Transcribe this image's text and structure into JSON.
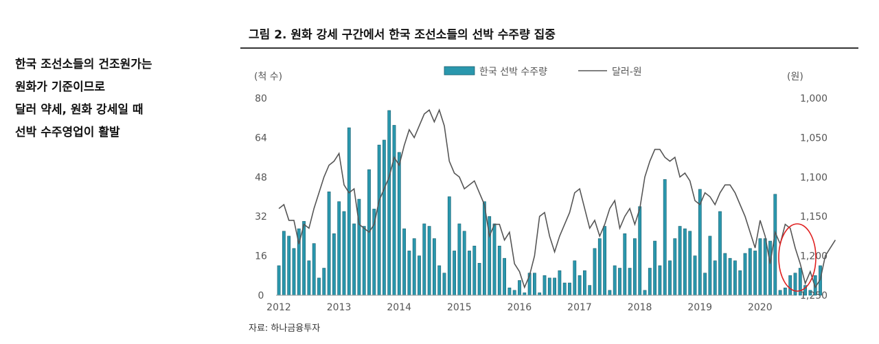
{
  "sidebar": {
    "lines": [
      "한국 조선소들의 건조원가는",
      "원화가 기준이므로",
      "달러 약세, 원화 강세일 때",
      "선박 수주영업이 활발"
    ]
  },
  "figure": {
    "title": "그림 2. 원화 강세 구간에서 한국 조선소들의 선박 수주량 집중",
    "source": "자료: 하나금융투자"
  },
  "colors": {
    "bar_fill": "#2a97ad",
    "bar_stroke": "#1a5f6e",
    "line": "#555555",
    "highlight": "#e02020"
  },
  "chart_data": {
    "type": "bar",
    "left_unit": "(척 수)",
    "right_unit": "(원)",
    "legend": [
      "한국 선박 수주량",
      "달러-원"
    ],
    "legend_position": "top",
    "x_tick_labels": [
      "2012",
      "2013",
      "2014",
      "2015",
      "2016",
      "2017",
      "2018",
      "2019",
      "2020"
    ],
    "y_left_ticks": [
      "0",
      "16",
      "32",
      "48",
      "64",
      "80"
    ],
    "y_right_ticks": [
      "1,250",
      "1,200",
      "1,150",
      "1,100",
      "1,050",
      "1,000"
    ],
    "y_left_range": [
      0,
      80
    ],
    "y_right_range": [
      1250,
      1000
    ],
    "y_right_inverted": true,
    "grid": false,
    "series": [
      {
        "name": "한국 선박 수주량",
        "axis": "left",
        "start": "2012-01",
        "frequency": "monthly",
        "values": [
          12,
          26,
          24,
          19,
          27,
          30,
          14,
          21,
          7,
          11,
          42,
          25,
          38,
          34,
          68,
          29,
          39,
          28,
          51,
          35,
          61,
          63,
          75,
          69,
          58,
          27,
          18,
          23,
          16,
          29,
          28,
          23,
          12,
          9,
          40,
          18,
          29,
          26,
          18,
          20,
          13,
          38,
          32,
          29,
          20,
          15,
          3,
          2,
          6,
          1,
          9,
          9,
          1,
          8,
          7,
          7,
          10,
          5,
          5,
          14,
          8,
          10,
          4,
          19,
          23,
          28,
          2,
          12,
          11,
          25,
          11,
          23,
          36,
          2,
          11,
          22,
          12,
          47,
          14,
          23,
          28,
          27,
          26,
          16,
          43,
          9,
          24,
          14,
          34,
          17,
          15,
          14,
          10,
          17,
          19,
          18,
          23,
          23,
          22,
          41,
          2,
          3,
          8,
          9,
          11,
          4,
          2,
          8,
          12
        ]
      },
      {
        "name": "달러-원",
        "axis": "right",
        "start": "2012-01",
        "frequency": "monthly",
        "values": [
          1140,
          1135,
          1155,
          1155,
          1185,
          1160,
          1165,
          1140,
          1120,
          1100,
          1085,
          1080,
          1070,
          1110,
          1120,
          1115,
          1160,
          1165,
          1170,
          1160,
          1130,
          1115,
          1100,
          1075,
          1085,
          1060,
          1040,
          1050,
          1035,
          1020,
          1015,
          1030,
          1015,
          1035,
          1080,
          1095,
          1100,
          1115,
          1110,
          1105,
          1120,
          1135,
          1175,
          1160,
          1160,
          1180,
          1170,
          1210,
          1220,
          1240,
          1225,
          1200,
          1150,
          1145,
          1175,
          1195,
          1175,
          1160,
          1145,
          1120,
          1115,
          1140,
          1165,
          1155,
          1175,
          1160,
          1140,
          1130,
          1165,
          1150,
          1140,
          1160,
          1140,
          1100,
          1080,
          1065,
          1065,
          1075,
          1080,
          1075,
          1100,
          1095,
          1105,
          1130,
          1135,
          1120,
          1125,
          1135,
          1120,
          1110,
          1110,
          1120,
          1135,
          1150,
          1170,
          1190,
          1155,
          1175,
          1210,
          1170,
          1185,
          1160,
          1165,
          1190,
          1210,
          1235,
          1220,
          1240,
          1230,
          1200,
          1190,
          1180
        ]
      }
    ]
  }
}
